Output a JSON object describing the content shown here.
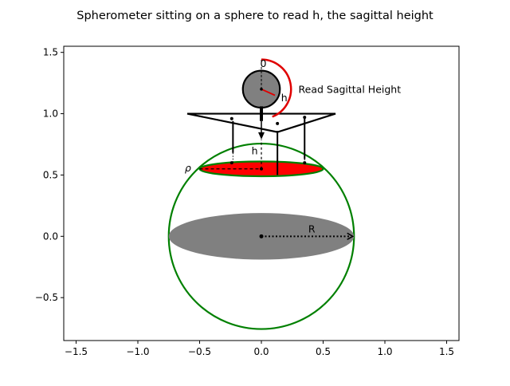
{
  "figure": {
    "title": "Spherometer sitting on a sphere to read h, the sagittal height"
  },
  "chart_data": {
    "type": "diagram",
    "xlim": [
      -1.6,
      1.6
    ],
    "ylim": [
      -0.85,
      1.55
    ],
    "x_ticks": [
      {
        "value": -1.5,
        "label": "−1.5"
      },
      {
        "value": -1.0,
        "label": "−1.0"
      },
      {
        "value": -0.5,
        "label": "−0.5"
      },
      {
        "value": 0.0,
        "label": "0.0"
      },
      {
        "value": 0.5,
        "label": "0.5"
      },
      {
        "value": 1.0,
        "label": "1.0"
      },
      {
        "value": 1.5,
        "label": "1.5"
      }
    ],
    "y_ticks": [
      {
        "value": -0.5,
        "label": "−0.5"
      },
      {
        "value": 0.0,
        "label": "0.0"
      },
      {
        "value": 0.5,
        "label": "0.5"
      },
      {
        "value": 1.0,
        "label": "1.0"
      },
      {
        "value": 1.5,
        "label": "1.5"
      }
    ],
    "grid": false,
    "sphere": {
      "center": [
        0,
        0
      ],
      "radius": 0.75,
      "color": "#008000"
    },
    "equator": {
      "center": [
        0,
        0
      ],
      "rx": 0.75,
      "ry": 0.19,
      "color": "#808080"
    },
    "cap_disk": {
      "center": [
        0,
        0.55
      ],
      "rx": 0.5,
      "ry": 0.06,
      "fill": "#ff0000",
      "edge": "#008000"
    },
    "gauge": {
      "center": [
        0,
        1.2
      ],
      "radius": 0.15,
      "fill": "#808080",
      "hand_end": [
        0.11,
        1.15
      ],
      "arc_color": "#e00000"
    },
    "labels": {
      "zero": "0",
      "h_dial": "h",
      "read": "Read Sagittal Height",
      "h_vertical": "h",
      "rho": "ρ",
      "R": "R"
    }
  }
}
